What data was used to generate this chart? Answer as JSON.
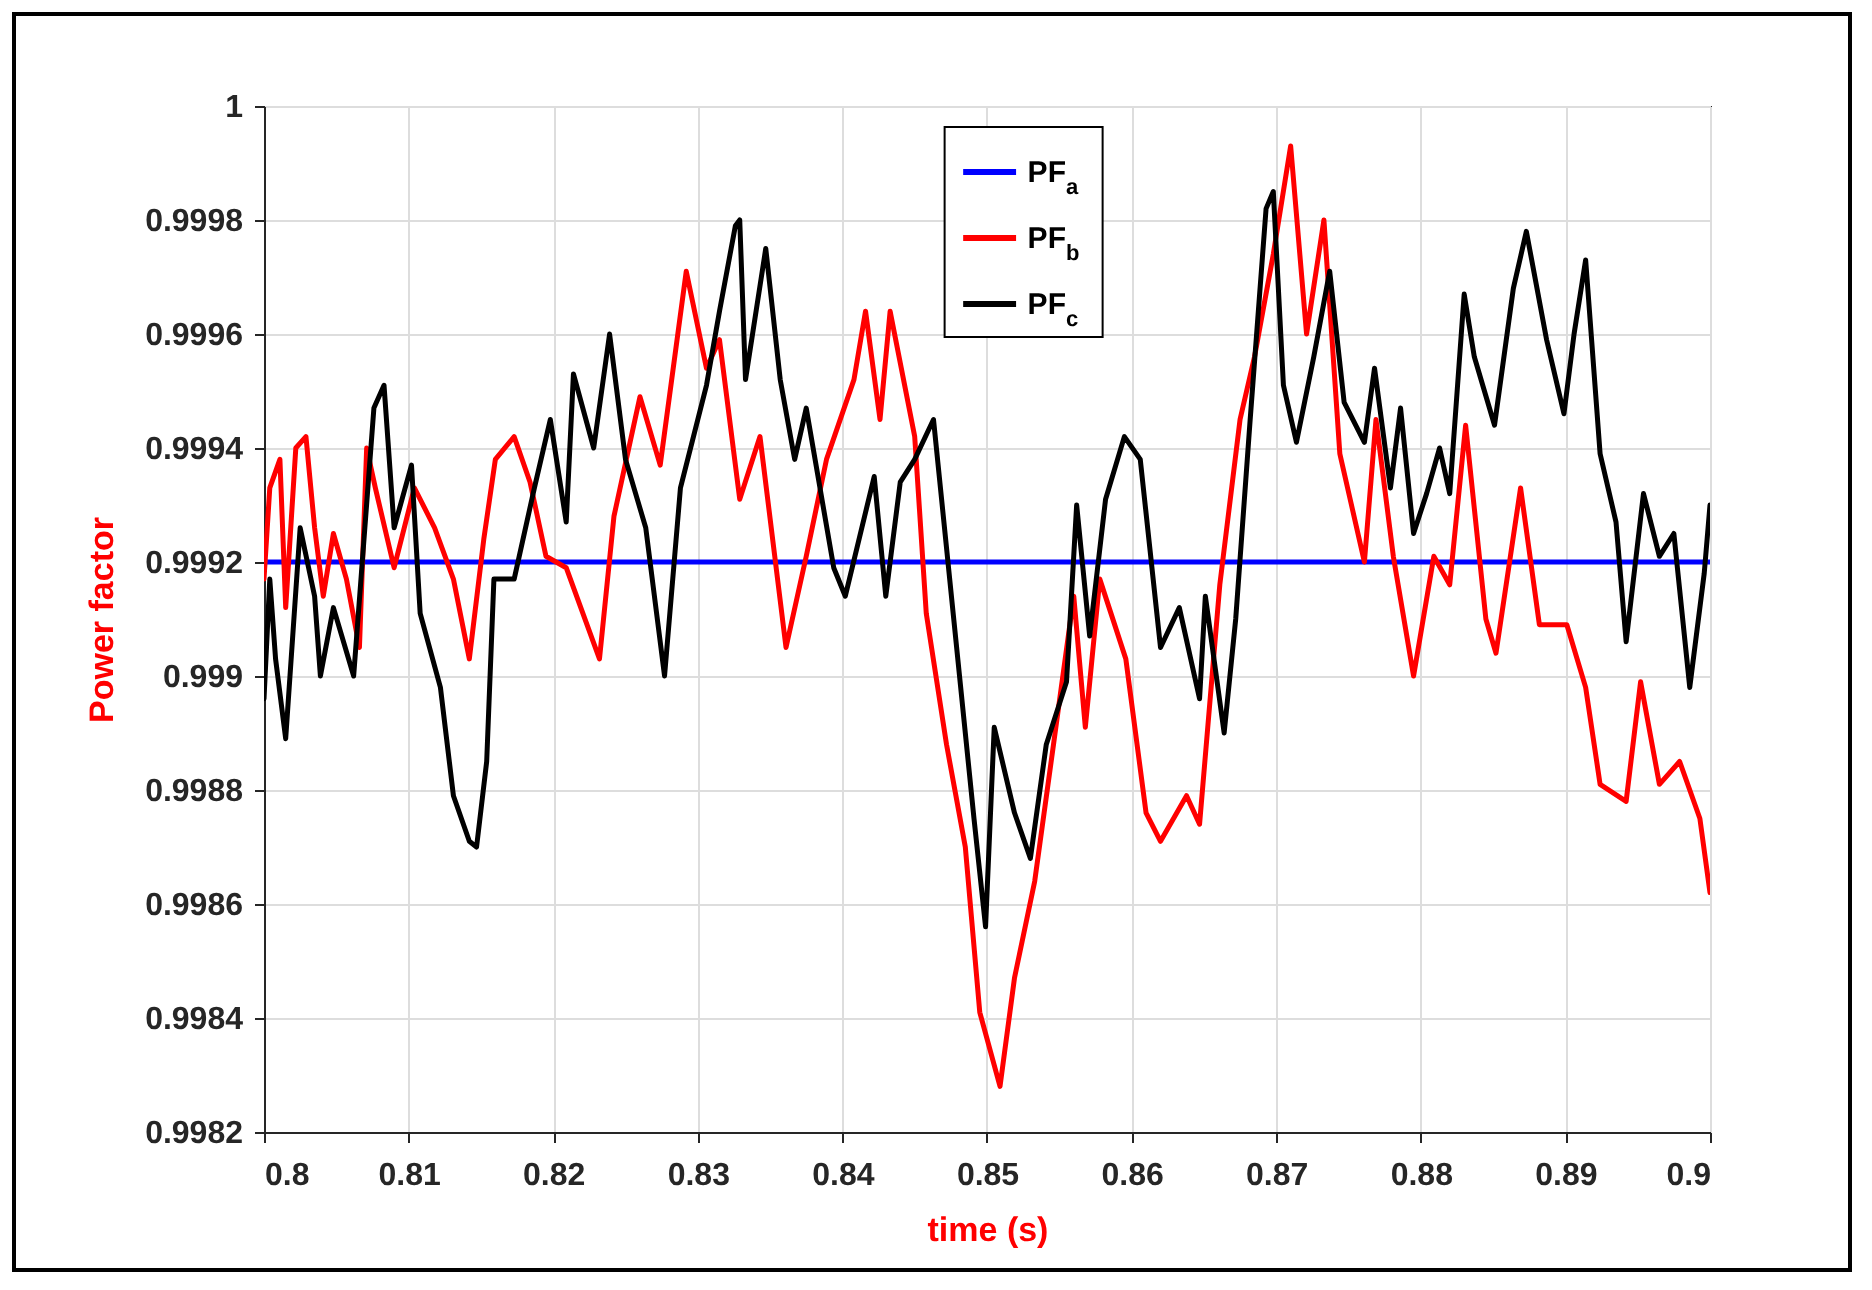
{
  "chart_data": {
    "type": "line",
    "xlabel": "time (s)",
    "ylabel": "Power factor",
    "xlim": [
      0.8,
      0.9
    ],
    "xticks": [
      0.8,
      0.81,
      0.82,
      0.83,
      0.84,
      0.85,
      0.86,
      0.87,
      0.88,
      0.89,
      0.9
    ],
    "ylim": [
      0.9982,
      1
    ],
    "yticks": [
      0.9982,
      0.9984,
      0.9986,
      0.9988,
      0.999,
      0.9992,
      0.9994,
      0.9996,
      0.9998,
      1
    ],
    "grid": true,
    "legend": "top",
    "line_style": "solid",
    "marker": "none",
    "series": [
      {
        "name": "PF$_{a}$",
        "color": "#0000ff",
        "x": [
          0.8,
          0.9
        ],
        "values": [
          0.9992,
          0.9992
        ]
      },
      {
        "name": "PF$_{b}$",
        "color": "#ff0000",
        "x": [
          0.8,
          0.8004,
          0.8011,
          0.8015,
          0.8022,
          0.8029,
          0.8035,
          0.8041,
          0.8048,
          0.8057,
          0.8066,
          0.8071,
          0.8077,
          0.809,
          0.8104,
          0.8118,
          0.8131,
          0.8142,
          0.8152,
          0.816,
          0.8173,
          0.8184,
          0.8195,
          0.8209,
          0.8232,
          0.8242,
          0.826,
          0.8274,
          0.8292,
          0.8306,
          0.8315,
          0.8329,
          0.8343,
          0.8361,
          0.8375,
          0.8389,
          0.8408,
          0.8416,
          0.8426,
          0.8433,
          0.845,
          0.8458,
          0.8472,
          0.8485,
          0.8495,
          0.8509,
          0.8519,
          0.8533,
          0.8546,
          0.856,
          0.8568,
          0.8578,
          0.8596,
          0.861,
          0.862,
          0.8638,
          0.8647,
          0.8661,
          0.8675,
          0.8685,
          0.8698,
          0.871,
          0.8721,
          0.8733,
          0.8744,
          0.8761,
          0.8769,
          0.8781,
          0.8795,
          0.8809,
          0.882,
          0.8831,
          0.8845,
          0.8852,
          0.8869,
          0.8882,
          0.8901,
          0.8914,
          0.8924,
          0.8942,
          0.8952,
          0.8965,
          0.8979,
          0.8993,
          0.9
        ],
        "values": [
          0.99917,
          0.99933,
          0.99938,
          0.99912,
          0.9994,
          0.99942,
          0.99926,
          0.99914,
          0.99925,
          0.99917,
          0.99905,
          0.9994,
          0.99933,
          0.99919,
          0.99933,
          0.99926,
          0.99917,
          0.99903,
          0.99924,
          0.99938,
          0.99942,
          0.99934,
          0.99921,
          0.99919,
          0.99903,
          0.99928,
          0.99949,
          0.99937,
          0.99971,
          0.99954,
          0.99959,
          0.99931,
          0.99942,
          0.99905,
          0.99921,
          0.99938,
          0.99952,
          0.99964,
          0.99945,
          0.99964,
          0.99942,
          0.99911,
          0.99888,
          0.9987,
          0.99841,
          0.99828,
          0.99847,
          0.99864,
          0.99888,
          0.99914,
          0.99891,
          0.99917,
          0.99903,
          0.99876,
          0.99871,
          0.99879,
          0.99874,
          0.99916,
          0.99945,
          0.99956,
          0.99974,
          0.99993,
          0.9996,
          0.9998,
          0.99939,
          0.9992,
          0.99945,
          0.99921,
          0.999,
          0.99921,
          0.99916,
          0.99944,
          0.9991,
          0.99904,
          0.99933,
          0.99909,
          0.99909,
          0.99898,
          0.99881,
          0.99878,
          0.99899,
          0.99881,
          0.99885,
          0.99875,
          0.99862
        ]
      },
      {
        "name": "PF$_{c}$",
        "color": "#000000",
        "x": [
          0.8,
          0.8004,
          0.8008,
          0.8015,
          0.8025,
          0.8035,
          0.8039,
          0.8048,
          0.8062,
          0.8076,
          0.8083,
          0.809,
          0.8102,
          0.8108,
          0.8122,
          0.8131,
          0.8142,
          0.8147,
          0.8154,
          0.8159,
          0.8173,
          0.8187,
          0.8198,
          0.8209,
          0.8214,
          0.8228,
          0.8239,
          0.825,
          0.8264,
          0.8277,
          0.8288,
          0.8306,
          0.8315,
          0.8326,
          0.8329,
          0.8333,
          0.8347,
          0.8357,
          0.8367,
          0.8375,
          0.8394,
          0.8402,
          0.8422,
          0.843,
          0.844,
          0.845,
          0.8463,
          0.8477,
          0.8491,
          0.8499,
          0.8505,
          0.8519,
          0.853,
          0.8541,
          0.8555,
          0.8562,
          0.8571,
          0.8582,
          0.8595,
          0.8606,
          0.862,
          0.8633,
          0.8647,
          0.8651,
          0.8664,
          0.8672,
          0.8682,
          0.8693,
          0.8698,
          0.8705,
          0.8714,
          0.8726,
          0.8737,
          0.8747,
          0.8761,
          0.8768,
          0.8779,
          0.8786,
          0.8795,
          0.8804,
          0.8813,
          0.882,
          0.883,
          0.8837,
          0.8851,
          0.8864,
          0.8873,
          0.8887,
          0.8899,
          0.8906,
          0.8914,
          0.8924,
          0.8935,
          0.8942,
          0.8954,
          0.8965,
          0.8975,
          0.8986,
          0.8996,
          0.9
        ],
        "values": [
          0.99896,
          0.99917,
          0.99903,
          0.99889,
          0.99926,
          0.99914,
          0.999,
          0.99912,
          0.999,
          0.99947,
          0.99951,
          0.99926,
          0.99937,
          0.99911,
          0.99898,
          0.99879,
          0.99871,
          0.9987,
          0.99885,
          0.99917,
          0.99917,
          0.99933,
          0.99945,
          0.99927,
          0.99953,
          0.9994,
          0.9996,
          0.99938,
          0.99926,
          0.999,
          0.99933,
          0.99951,
          0.99964,
          0.99979,
          0.9998,
          0.99952,
          0.99975,
          0.99952,
          0.99938,
          0.99947,
          0.99919,
          0.99914,
          0.99935,
          0.99914,
          0.99934,
          0.99938,
          0.99945,
          0.9991,
          0.99875,
          0.99856,
          0.99891,
          0.99876,
          0.99868,
          0.99888,
          0.99899,
          0.9993,
          0.99907,
          0.99931,
          0.99942,
          0.99938,
          0.99905,
          0.99912,
          0.99896,
          0.99914,
          0.9989,
          0.9991,
          0.99945,
          0.99982,
          0.99985,
          0.99951,
          0.99941,
          0.99956,
          0.99971,
          0.99948,
          0.99941,
          0.99954,
          0.99933,
          0.99947,
          0.99925,
          0.99932,
          0.9994,
          0.99932,
          0.99967,
          0.99956,
          0.99944,
          0.99968,
          0.99978,
          0.99959,
          0.99946,
          0.9996,
          0.99973,
          0.99939,
          0.99927,
          0.99906,
          0.99932,
          0.99921,
          0.99925,
          0.99898,
          0.99918,
          0.9993
        ]
      }
    ]
  }
}
